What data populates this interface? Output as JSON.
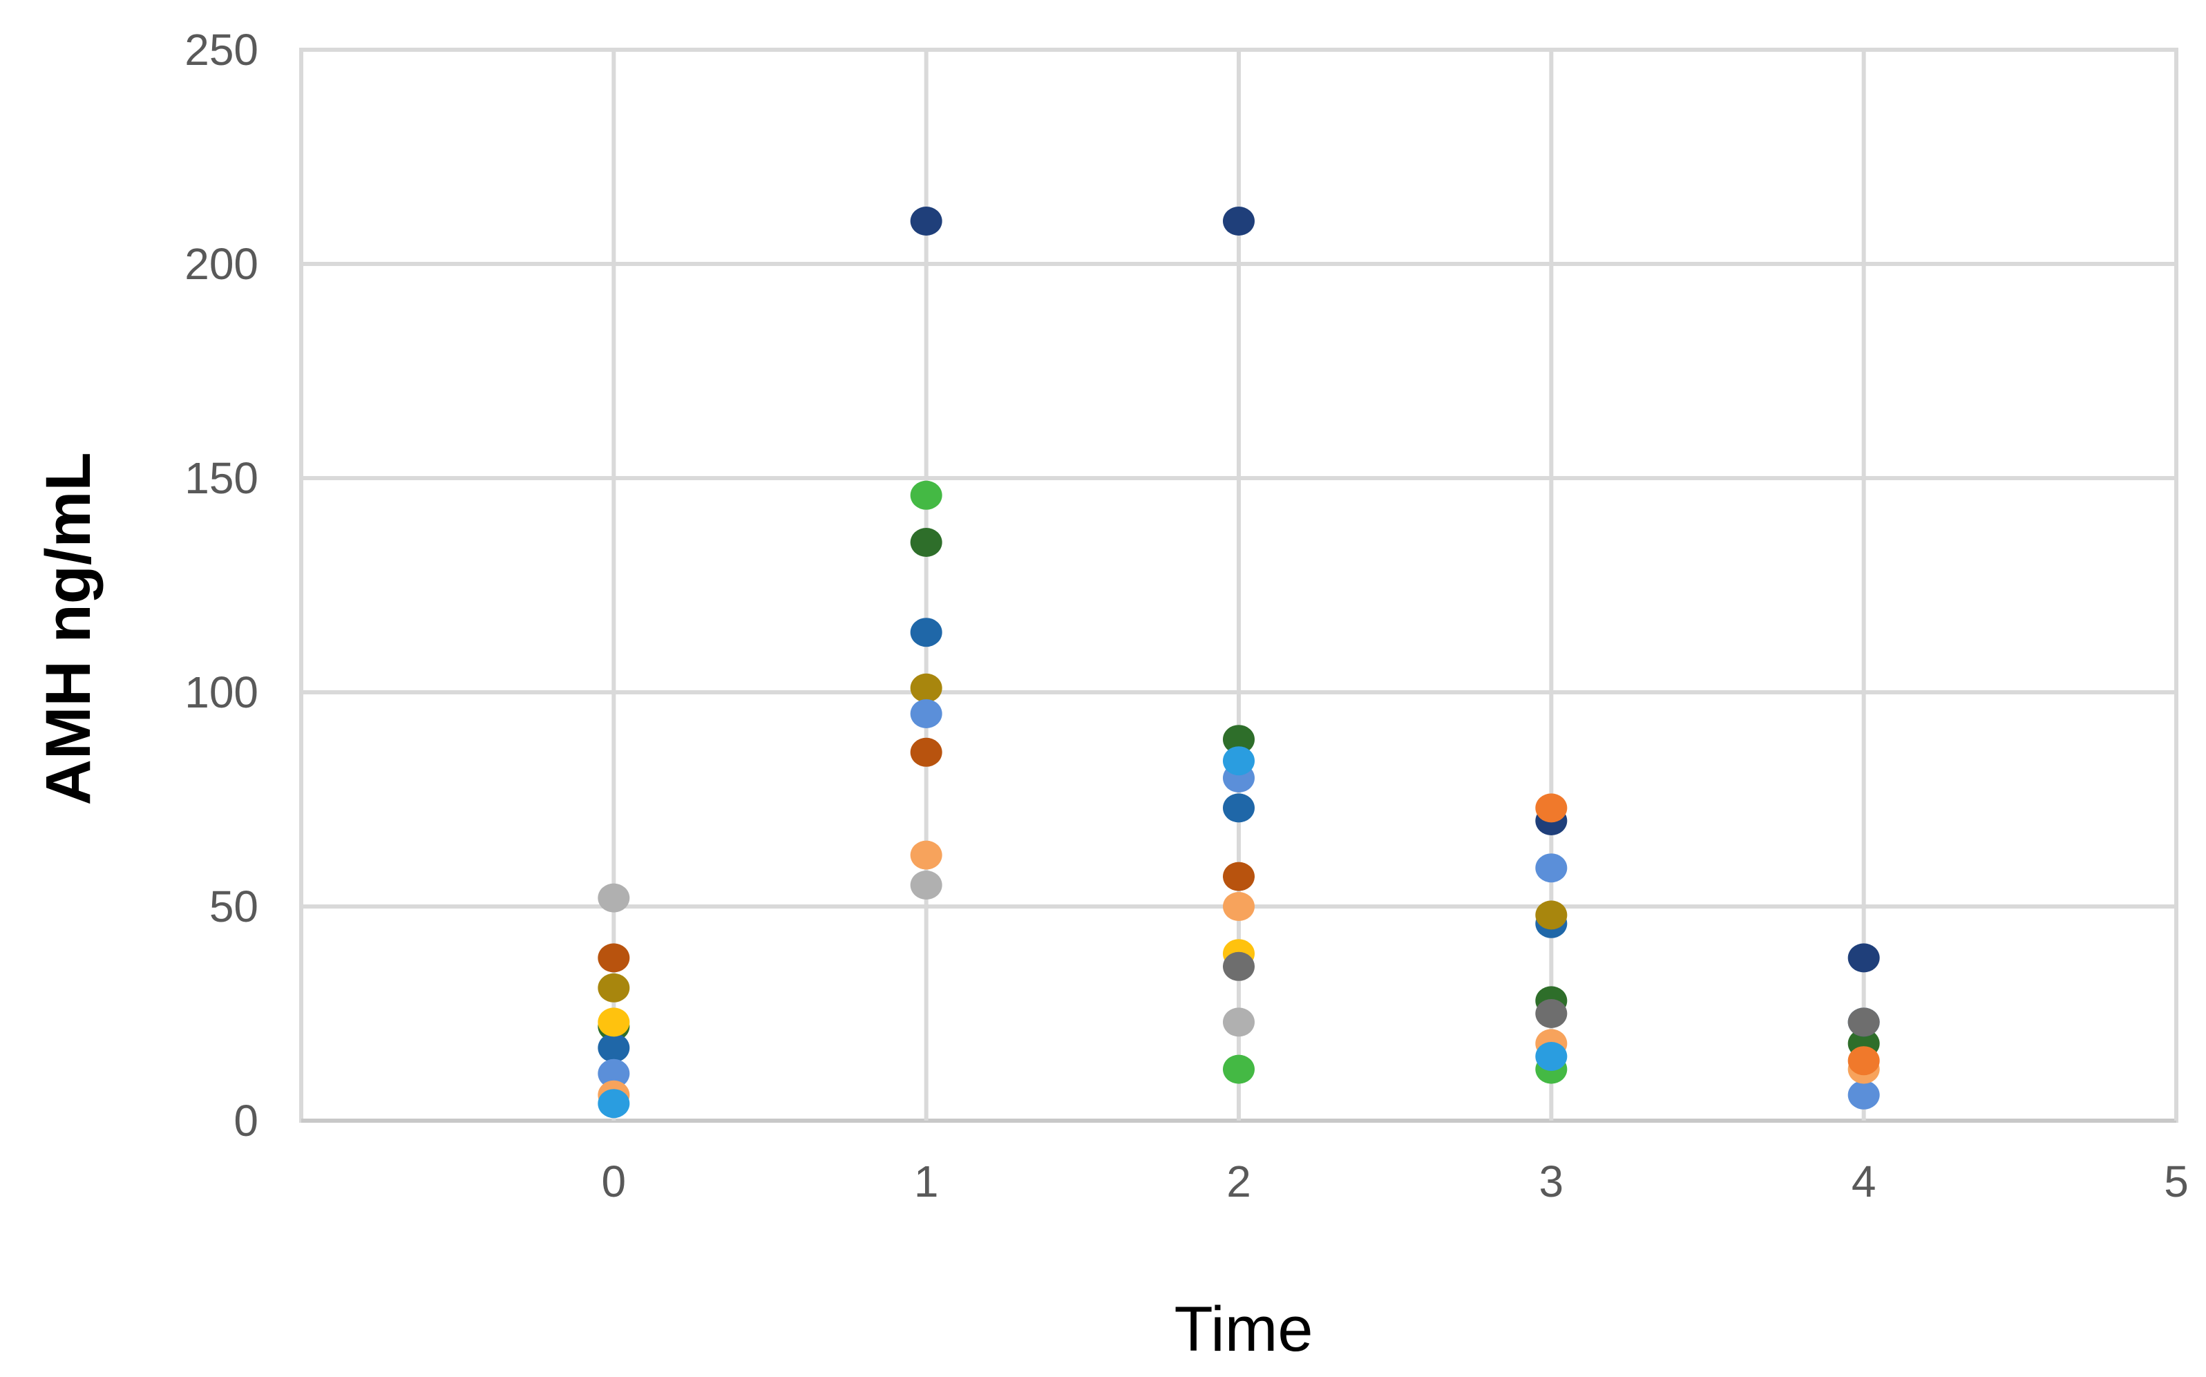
{
  "chart_data": {
    "type": "scatter",
    "title": "",
    "xlabel": "Time",
    "ylabel": "AMH ng/mL",
    "xlim": [
      -1,
      5
    ],
    "ylim": [
      0,
      250
    ],
    "x_ticks": [
      "0",
      "1",
      "2",
      "3",
      "4",
      "5"
    ],
    "y_ticks": [
      "0",
      "50",
      "100",
      "150",
      "200",
      "250"
    ],
    "grid": true,
    "legend": "none",
    "series": [
      {
        "color": "#1F3F7A",
        "points": [
          [
            1,
            210
          ],
          [
            2,
            210
          ],
          [
            3,
            70
          ],
          [
            4,
            38
          ]
        ]
      },
      {
        "color": "#44B944",
        "points": [
          [
            1,
            146
          ],
          [
            2,
            12
          ],
          [
            3,
            12
          ]
        ]
      },
      {
        "color": "#2E6E2A",
        "points": [
          [
            0,
            22
          ],
          [
            1,
            135
          ],
          [
            2,
            89
          ],
          [
            3,
            28
          ],
          [
            4,
            18
          ]
        ]
      },
      {
        "color": "#1F67A8",
        "points": [
          [
            0,
            17
          ],
          [
            1,
            114
          ],
          [
            2,
            73
          ],
          [
            3,
            46
          ],
          [
            4,
            23
          ]
        ]
      },
      {
        "color": "#A8860D",
        "points": [
          [
            0,
            31
          ],
          [
            1,
            101
          ],
          [
            3,
            48
          ]
        ]
      },
      {
        "color": "#5B8FD9",
        "points": [
          [
            0,
            11
          ],
          [
            1,
            95
          ],
          [
            2,
            80
          ],
          [
            3,
            59
          ],
          [
            4,
            6
          ]
        ]
      },
      {
        "color": "#B8530E",
        "points": [
          [
            0,
            38
          ],
          [
            1,
            86
          ],
          [
            2,
            57
          ]
        ]
      },
      {
        "color": "#F7A35C",
        "points": [
          [
            0,
            6
          ],
          [
            1,
            62
          ],
          [
            2,
            50
          ],
          [
            3,
            18
          ],
          [
            4,
            12
          ]
        ]
      },
      {
        "color": "#B0B0B0",
        "points": [
          [
            0,
            52
          ],
          [
            1,
            55
          ],
          [
            2,
            23
          ]
        ]
      },
      {
        "color": "#FFC20E",
        "points": [
          [
            0,
            23
          ],
          [
            2,
            39
          ]
        ]
      },
      {
        "color": "#6E6E6E",
        "points": [
          [
            2,
            36
          ],
          [
            3,
            25
          ],
          [
            4,
            23
          ]
        ]
      },
      {
        "color": "#2A9DE0",
        "points": [
          [
            0,
            4
          ],
          [
            2,
            84
          ],
          [
            3,
            15
          ]
        ]
      },
      {
        "color": "#F0792B",
        "points": [
          [
            3,
            73
          ],
          [
            4,
            14
          ]
        ]
      }
    ]
  }
}
